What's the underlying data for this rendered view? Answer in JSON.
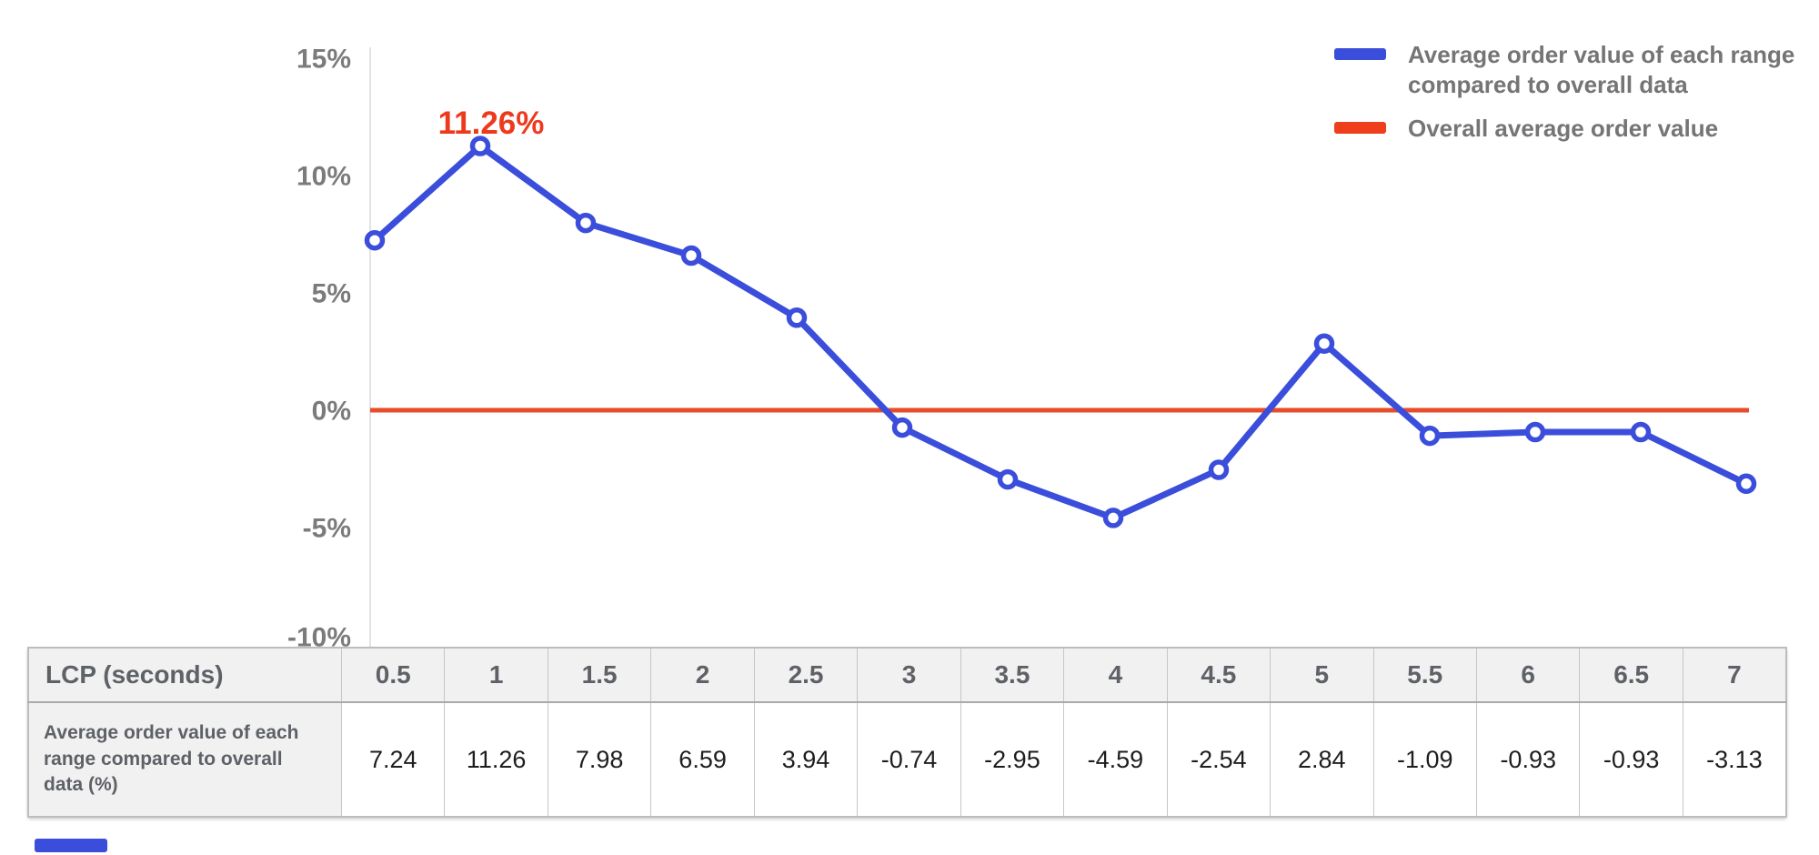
{
  "chart": {
    "legend": [
      {
        "label": "Average order value of each range compared to overall data",
        "color": "#3B4EDB"
      },
      {
        "label": "Overall average order value",
        "color": "#EE3E1C"
      }
    ],
    "annotation": {
      "text": "11.26%",
      "color": "#EE3A1C"
    },
    "y_ticks": [
      "15%",
      "10%",
      "5%",
      "0%",
      "-5%",
      "-10%"
    ]
  },
  "chart_data": {
    "type": "line",
    "title": "",
    "xlabel": "LCP (seconds)",
    "ylabel": "",
    "x": [
      0.5,
      1,
      1.5,
      2,
      2.5,
      3,
      3.5,
      4,
      4.5,
      5,
      5.5,
      6,
      6.5,
      7
    ],
    "series": [
      {
        "name": "Average order value of each range compared to overall data",
        "color": "#3B4EDB",
        "values": [
          7.24,
          11.26,
          7.98,
          6.59,
          3.94,
          -0.74,
          -2.95,
          -4.59,
          -2.54,
          2.84,
          -1.09,
          -0.93,
          -0.93,
          -3.13
        ]
      },
      {
        "name": "Overall average order value",
        "color": "#E74C2B",
        "constant": 0
      }
    ],
    "ylim": [
      -10,
      15
    ],
    "y_tick_values": [
      15,
      10,
      5,
      0,
      -5,
      -10
    ],
    "grid": false,
    "legend_position": "top-right",
    "annotations": [
      {
        "x": 1,
        "y": 11.26,
        "text": "11.26%"
      }
    ]
  },
  "table": {
    "header_label": "LCP (seconds)",
    "columns": [
      "0.5",
      "1",
      "1.5",
      "2",
      "2.5",
      "3",
      "3.5",
      "4",
      "4.5",
      "5",
      "5.5",
      "6",
      "6.5",
      "7"
    ],
    "row_label": "Average order value of each range compared to overall data (%)",
    "values": [
      "7.24",
      "11.26",
      "7.98",
      "6.59",
      "3.94",
      "-0.74",
      "-2.95",
      "-4.59",
      "-2.54",
      "2.84",
      "-1.09",
      "-0.93",
      "-0.93",
      "-3.13"
    ]
  },
  "colors": {
    "series_blue": "#3B4EDB",
    "baseline_red": "#E74C2B",
    "annotation_red": "#EE3A1C",
    "axis_line": "#e3e3e3",
    "tick_label": "#7b7b7b",
    "legend_text": "#757575",
    "accent_bar": "#3B4EDB"
  }
}
